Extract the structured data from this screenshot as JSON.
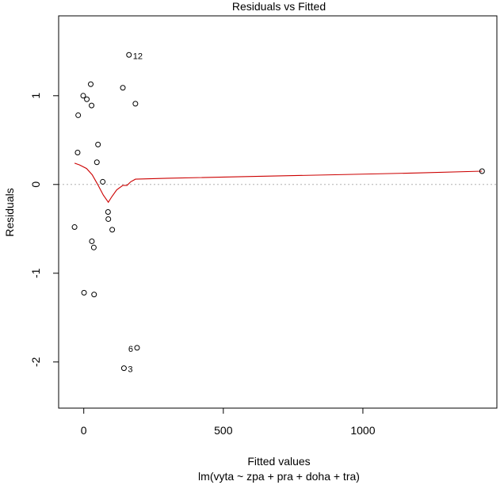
{
  "chart_data": {
    "type": "scatter",
    "title": "Residuals vs Fitted",
    "xlabel": "Fitted values",
    "subtitle": "lm(vyta ~ zpa + pra + doha + tra)",
    "ylabel": "Residuals",
    "xlim": [
      -90,
      1480
    ],
    "ylim": [
      -2.52,
      1.9
    ],
    "xticks": [
      0,
      500,
      1000
    ],
    "xtick_labels": [
      "0",
      "500",
      "1000"
    ],
    "yticks": [
      -2,
      -1,
      0,
      1
    ],
    "ytick_labels": [
      "-2",
      "-1",
      "0",
      "1"
    ],
    "grid": false,
    "zero_line": {
      "y": 0,
      "color": "#b0b0b0",
      "style": "dotted"
    },
    "point_color": "#000000",
    "smooth_color": "#cc0000",
    "points": [
      {
        "x": -33,
        "y": -0.48
      },
      {
        "x": -22,
        "y": 0.36
      },
      {
        "x": -20,
        "y": 0.78
      },
      {
        "x": -2,
        "y": 1.0
      },
      {
        "x": 1,
        "y": -1.22
      },
      {
        "x": 11,
        "y": 0.96
      },
      {
        "x": 25,
        "y": 1.13
      },
      {
        "x": 28,
        "y": 0.89
      },
      {
        "x": 29,
        "y": -0.64
      },
      {
        "x": 36,
        "y": -0.71
      },
      {
        "x": 37,
        "y": -1.24
      },
      {
        "x": 47,
        "y": 0.25
      },
      {
        "x": 51,
        "y": 0.45
      },
      {
        "x": 68,
        "y": 0.03
      },
      {
        "x": 87,
        "y": -0.31
      },
      {
        "x": 88,
        "y": -0.39
      },
      {
        "x": 102,
        "y": -0.51
      },
      {
        "x": 140,
        "y": 1.09
      },
      {
        "x": 144,
        "y": -2.07
      },
      {
        "x": 162,
        "y": 1.46
      },
      {
        "x": 185,
        "y": 0.91
      },
      {
        "x": 191,
        "y": -1.84
      },
      {
        "x": 1427,
        "y": 0.15
      }
    ],
    "point_labels": [
      {
        "text": "12",
        "x": 162,
        "y": 1.46,
        "side": "right"
      },
      {
        "text": "6",
        "x": 191,
        "y": -1.84,
        "side": "left"
      },
      {
        "text": "3",
        "x": 144,
        "y": -2.07,
        "side": "right"
      }
    ],
    "smooth_line": [
      {
        "x": -33,
        "y": 0.24
      },
      {
        "x": -15,
        "y": 0.22
      },
      {
        "x": 10,
        "y": 0.18
      },
      {
        "x": 30,
        "y": 0.11
      },
      {
        "x": 50,
        "y": 0.0
      },
      {
        "x": 70,
        "y": -0.12
      },
      {
        "x": 88,
        "y": -0.2
      },
      {
        "x": 100,
        "y": -0.14
      },
      {
        "x": 118,
        "y": -0.06
      },
      {
        "x": 140,
        "y": -0.01
      },
      {
        "x": 155,
        "y": -0.01
      },
      {
        "x": 168,
        "y": 0.03
      },
      {
        "x": 185,
        "y": 0.06
      },
      {
        "x": 300,
        "y": 0.07
      },
      {
        "x": 600,
        "y": 0.09
      },
      {
        "x": 900,
        "y": 0.11
      },
      {
        "x": 1200,
        "y": 0.13
      },
      {
        "x": 1427,
        "y": 0.15
      }
    ]
  }
}
